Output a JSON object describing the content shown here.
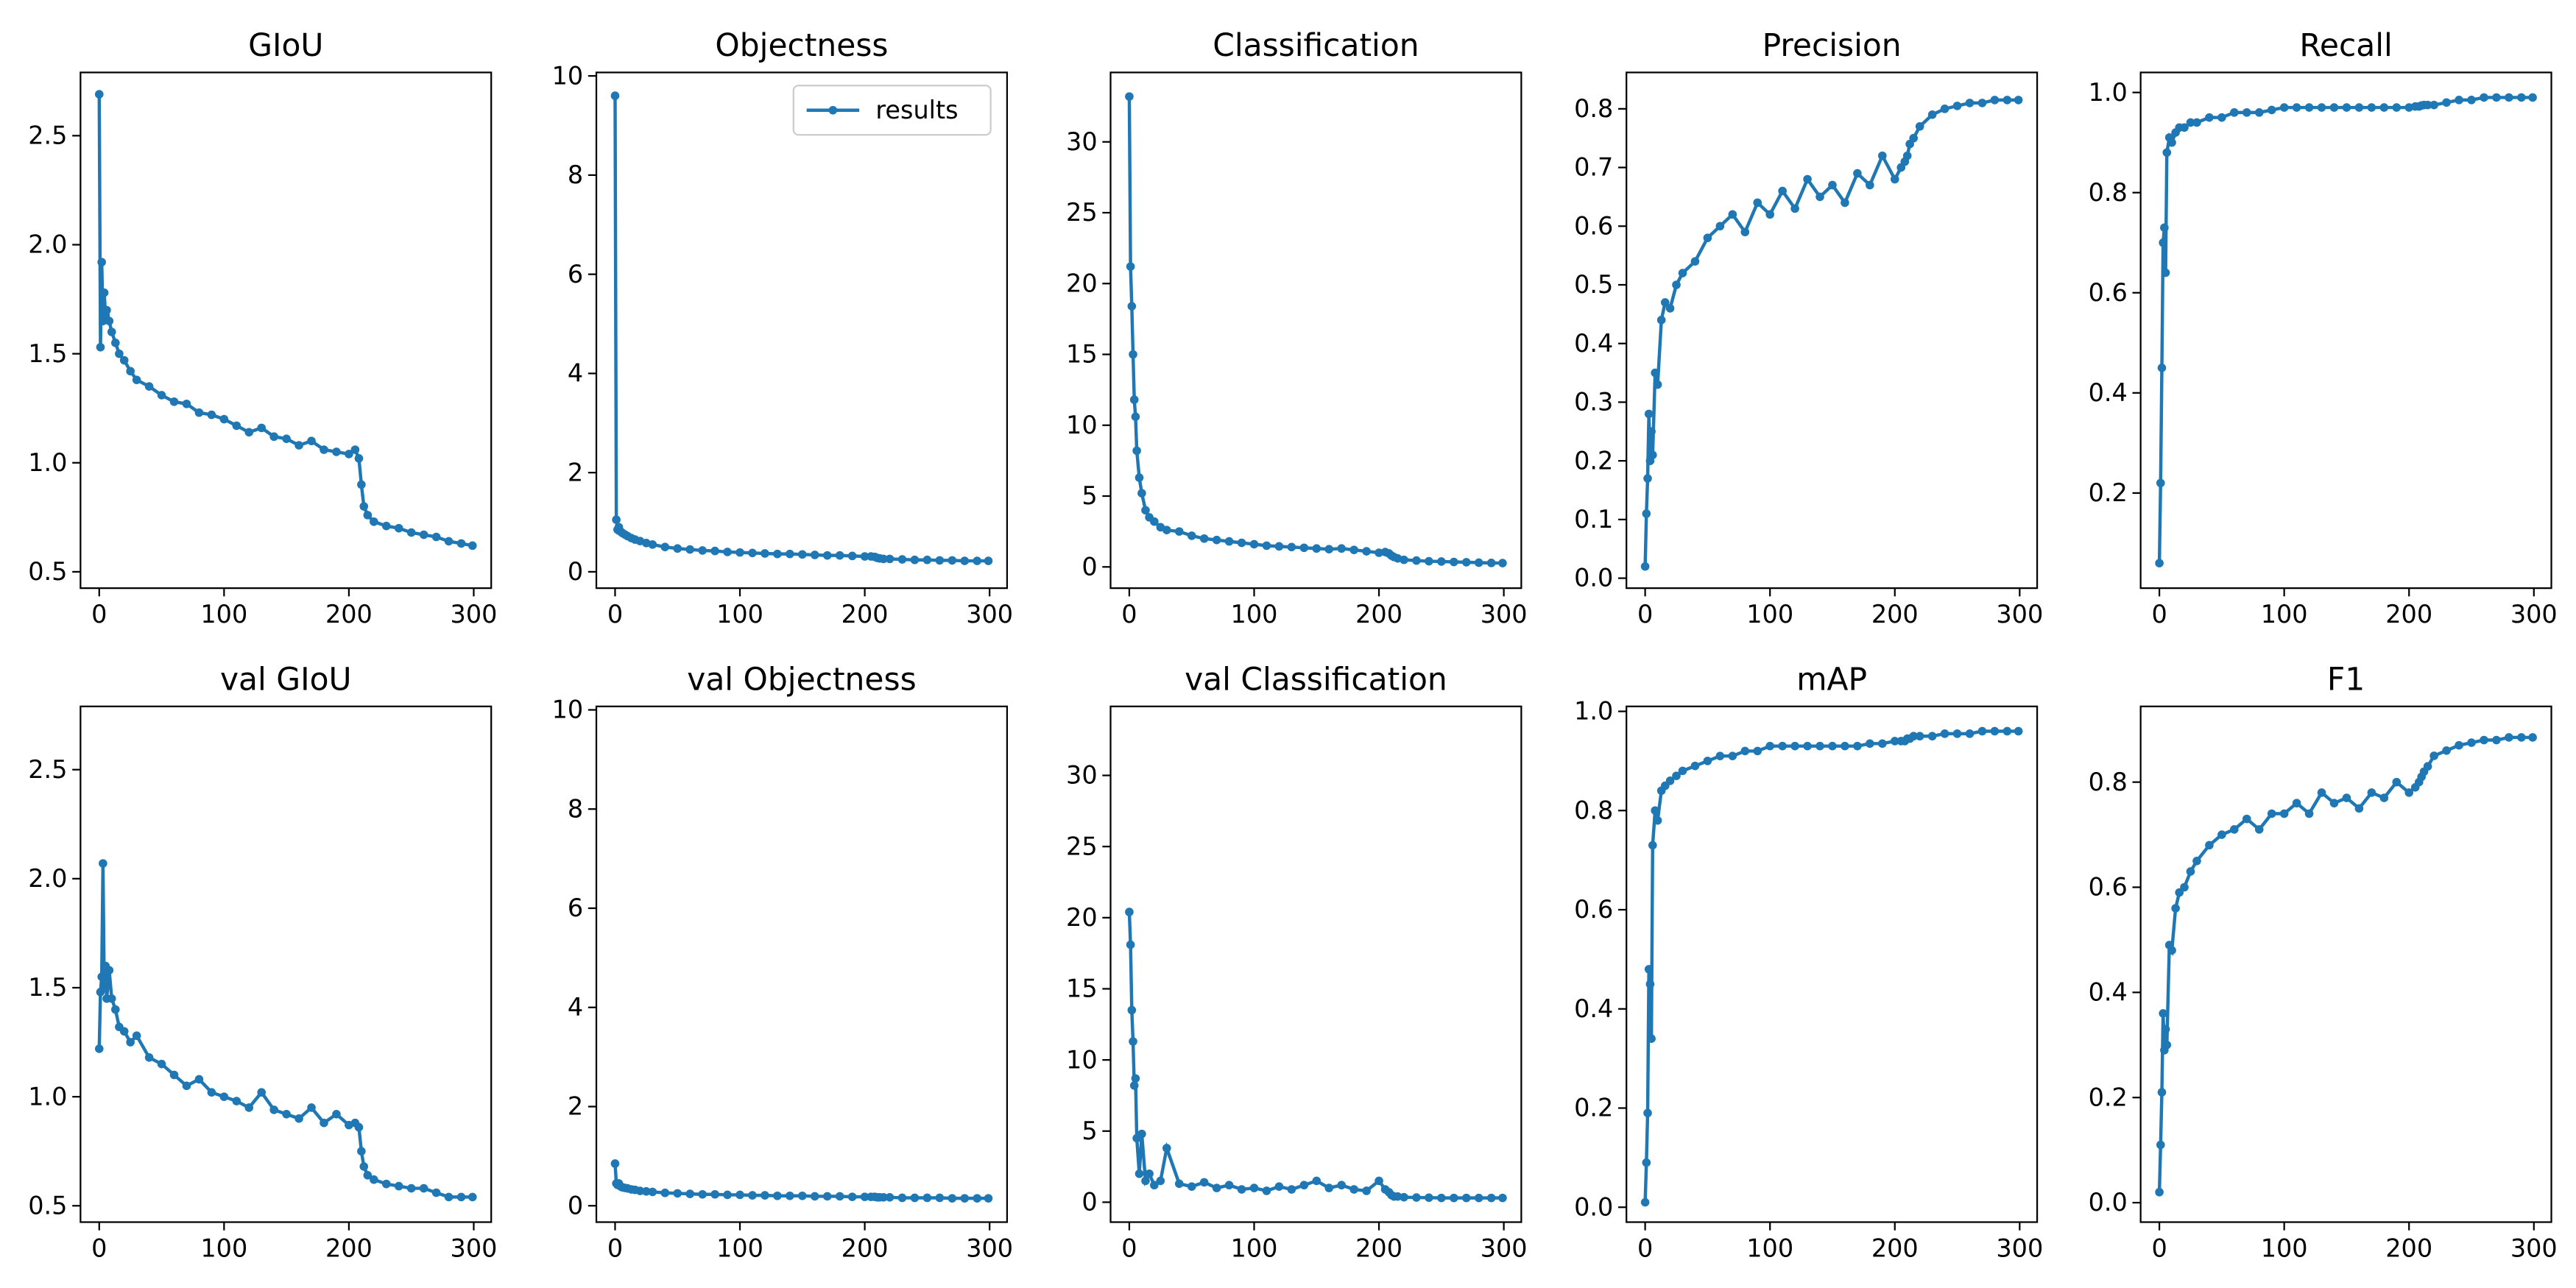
{
  "chart_data": [
    {
      "type": "line",
      "title": "GIoU",
      "color": "#1f77b4",
      "x": [
        0,
        1,
        2,
        3,
        4,
        5,
        6,
        8,
        10,
        13,
        16,
        20,
        25,
        30,
        40,
        50,
        60,
        70,
        80,
        90,
        100,
        110,
        120,
        130,
        140,
        150,
        160,
        170,
        180,
        190,
        200,
        205,
        208,
        210,
        212,
        215,
        220,
        230,
        240,
        250,
        260,
        270,
        280,
        290,
        299
      ],
      "values": [
        2.69,
        1.53,
        1.92,
        1.65,
        1.78,
        1.68,
        1.7,
        1.65,
        1.6,
        1.55,
        1.5,
        1.47,
        1.42,
        1.38,
        1.35,
        1.31,
        1.28,
        1.27,
        1.23,
        1.22,
        1.2,
        1.17,
        1.14,
        1.16,
        1.12,
        1.11,
        1.08,
        1.1,
        1.06,
        1.05,
        1.04,
        1.06,
        1.02,
        0.9,
        0.8,
        0.76,
        0.73,
        0.71,
        0.7,
        0.68,
        0.67,
        0.66,
        0.64,
        0.63,
        0.62
      ],
      "xlim": [
        -15,
        314
      ],
      "ylim": [
        0.425,
        2.79
      ],
      "xticks": [
        0,
        100,
        200,
        300
      ],
      "yticks": [
        0.5,
        {
          "value": 1,
          "label": "1.0"
        },
        1.5,
        {
          "value": 2,
          "label": "2.0"
        },
        2.5
      ]
    },
    {
      "type": "line",
      "title": "Objectness",
      "legend": "upper right",
      "x": [
        0,
        1,
        2,
        3,
        4,
        5,
        6,
        8,
        10,
        13,
        16,
        20,
        25,
        30,
        40,
        50,
        60,
        70,
        80,
        90,
        100,
        110,
        120,
        130,
        140,
        150,
        160,
        170,
        180,
        190,
        200,
        205,
        208,
        210,
        212,
        215,
        220,
        230,
        240,
        250,
        260,
        270,
        280,
        290,
        299
      ],
      "series": [
        {
          "name": "results",
          "color": "#1f77b4",
          "values": [
            9.6,
            1.05,
            0.85,
            0.9,
            0.82,
            0.8,
            0.78,
            0.75,
            0.72,
            0.68,
            0.65,
            0.62,
            0.58,
            0.55,
            0.5,
            0.47,
            0.45,
            0.43,
            0.42,
            0.4,
            0.39,
            0.38,
            0.37,
            0.36,
            0.36,
            0.35,
            0.34,
            0.33,
            0.33,
            0.32,
            0.31,
            0.31,
            0.3,
            0.28,
            0.27,
            0.26,
            0.26,
            0.25,
            0.24,
            0.24,
            0.23,
            0.23,
            0.22,
            0.22,
            0.22
          ]
        }
      ],
      "xlim": [
        -15,
        314
      ],
      "ylim": [
        -0.33,
        10.07
      ],
      "xticks": [
        0,
        100,
        200,
        300
      ],
      "yticks": [
        0,
        2,
        4,
        6,
        8,
        10
      ]
    },
    {
      "type": "line",
      "title": "Classification",
      "color": "#1f77b4",
      "x": [
        0,
        1,
        2,
        3,
        4,
        5,
        6,
        8,
        10,
        13,
        16,
        20,
        25,
        30,
        40,
        50,
        60,
        70,
        80,
        90,
        100,
        110,
        120,
        130,
        140,
        150,
        160,
        170,
        180,
        190,
        200,
        205,
        208,
        210,
        212,
        215,
        220,
        230,
        240,
        250,
        260,
        270,
        280,
        290,
        299
      ],
      "values": [
        33.2,
        21.2,
        18.4,
        15,
        11.8,
        10.6,
        8.2,
        6.3,
        5.2,
        4,
        3.5,
        3.2,
        2.8,
        2.6,
        2.5,
        2.2,
        2,
        1.9,
        1.8,
        1.7,
        1.6,
        1.5,
        1.45,
        1.4,
        1.35,
        1.3,
        1.25,
        1.3,
        1.2,
        1.1,
        1,
        1.05,
        0.95,
        0.8,
        0.7,
        0.6,
        0.5,
        0.45,
        0.4,
        0.38,
        0.35,
        0.33,
        0.3,
        0.28,
        0.27
      ],
      "xlim": [
        -15,
        314
      ],
      "ylim": [
        -1.5,
        34.9
      ],
      "xticks": [
        0,
        100,
        200,
        300
      ],
      "yticks": [
        0,
        5,
        10,
        15,
        20,
        25,
        30
      ]
    },
    {
      "type": "line",
      "title": "Precision",
      "color": "#1f77b4",
      "x": [
        0,
        1,
        2,
        3,
        4,
        5,
        6,
        8,
        10,
        13,
        16,
        20,
        25,
        30,
        40,
        50,
        60,
        70,
        80,
        90,
        100,
        110,
        120,
        130,
        140,
        150,
        160,
        170,
        180,
        190,
        200,
        205,
        208,
        210,
        212,
        215,
        220,
        230,
        240,
        250,
        260,
        270,
        280,
        290,
        299
      ],
      "values": [
        0.02,
        0.11,
        0.17,
        0.28,
        0.2,
        0.25,
        0.21,
        0.35,
        0.33,
        0.44,
        0.47,
        0.46,
        0.5,
        0.52,
        0.54,
        0.58,
        0.6,
        0.62,
        0.59,
        0.64,
        0.62,
        0.66,
        0.63,
        0.68,
        0.65,
        0.67,
        0.64,
        0.69,
        0.67,
        0.72,
        0.68,
        0.7,
        0.71,
        0.72,
        0.74,
        0.75,
        0.77,
        0.79,
        0.8,
        0.805,
        0.81,
        0.81,
        0.815,
        0.815,
        0.815
      ],
      "xlim": [
        -15,
        314
      ],
      "ylim": [
        -0.017,
        0.862
      ],
      "xticks": [
        0,
        100,
        200,
        300
      ],
      "yticks": [
        {
          "value": 0,
          "label": "0.0"
        },
        0.1,
        0.2,
        0.3,
        0.4,
        0.5,
        0.6,
        0.7,
        0.8
      ]
    },
    {
      "type": "line",
      "title": "Recall",
      "color": "#1f77b4",
      "x": [
        0,
        1,
        2,
        3,
        4,
        5,
        6,
        8,
        10,
        13,
        16,
        20,
        25,
        30,
        40,
        50,
        60,
        70,
        80,
        90,
        100,
        110,
        120,
        130,
        140,
        150,
        160,
        170,
        180,
        190,
        200,
        205,
        208,
        210,
        212,
        215,
        220,
        230,
        240,
        250,
        260,
        270,
        280,
        290,
        299
      ],
      "values": [
        0.06,
        0.22,
        0.45,
        0.7,
        0.73,
        0.64,
        0.88,
        0.91,
        0.9,
        0.92,
        0.93,
        0.93,
        0.94,
        0.94,
        0.95,
        0.95,
        0.96,
        0.96,
        0.96,
        0.965,
        0.97,
        0.97,
        0.97,
        0.97,
        0.97,
        0.97,
        0.97,
        0.97,
        0.97,
        0.97,
        0.97,
        0.972,
        0.972,
        0.974,
        0.975,
        0.975,
        0.975,
        0.98,
        0.985,
        0.985,
        0.99,
        0.99,
        0.99,
        0.99,
        0.99
      ],
      "xlim": [
        -15,
        314
      ],
      "ylim": [
        0.01,
        1.04
      ],
      "xticks": [
        0,
        100,
        200,
        300
      ],
      "yticks": [
        0.2,
        0.4,
        0.6,
        0.8,
        {
          "value": 1,
          "label": "1.0"
        }
      ]
    },
    {
      "type": "line",
      "title": "val GIoU",
      "color": "#1f77b4",
      "x": [
        0,
        1,
        2,
        3,
        4,
        5,
        6,
        8,
        10,
        13,
        16,
        20,
        25,
        30,
        40,
        50,
        60,
        70,
        80,
        90,
        100,
        110,
        120,
        130,
        140,
        150,
        160,
        170,
        180,
        190,
        200,
        205,
        208,
        210,
        212,
        215,
        220,
        230,
        240,
        250,
        260,
        270,
        280,
        290,
        299
      ],
      "values": [
        1.22,
        1.48,
        1.55,
        2.07,
        1.5,
        1.6,
        1.45,
        1.58,
        1.45,
        1.4,
        1.32,
        1.3,
        1.25,
        1.28,
        1.18,
        1.15,
        1.1,
        1.05,
        1.08,
        1.02,
        1,
        0.98,
        0.95,
        1.02,
        0.94,
        0.92,
        0.9,
        0.95,
        0.88,
        0.92,
        0.87,
        0.88,
        0.86,
        0.75,
        0.68,
        0.64,
        0.62,
        0.6,
        0.59,
        0.58,
        0.58,
        0.56,
        0.54,
        0.54,
        0.54
      ],
      "xlim": [
        -15,
        314
      ],
      "ylim": [
        0.425,
        2.79
      ],
      "xticks": [
        0,
        100,
        200,
        300
      ],
      "yticks": [
        0.5,
        {
          "value": 1,
          "label": "1.0"
        },
        1.5,
        {
          "value": 2,
          "label": "2.0"
        },
        2.5
      ]
    },
    {
      "type": "line",
      "title": "val Objectness",
      "color": "#1f77b4",
      "x": [
        0,
        1,
        2,
        3,
        4,
        5,
        6,
        8,
        10,
        13,
        16,
        20,
        25,
        30,
        40,
        50,
        60,
        70,
        80,
        90,
        100,
        110,
        120,
        130,
        140,
        150,
        160,
        170,
        180,
        190,
        200,
        205,
        208,
        210,
        212,
        215,
        220,
        230,
        240,
        250,
        260,
        270,
        280,
        290,
        299
      ],
      "values": [
        0.85,
        0.45,
        0.42,
        0.45,
        0.4,
        0.38,
        0.37,
        0.36,
        0.35,
        0.33,
        0.32,
        0.3,
        0.29,
        0.28,
        0.26,
        0.25,
        0.24,
        0.23,
        0.23,
        0.22,
        0.22,
        0.21,
        0.21,
        0.2,
        0.2,
        0.2,
        0.19,
        0.19,
        0.19,
        0.18,
        0.18,
        0.18,
        0.18,
        0.17,
        0.17,
        0.17,
        0.17,
        0.16,
        0.16,
        0.16,
        0.16,
        0.15,
        0.15,
        0.15,
        0.15
      ],
      "xlim": [
        -15,
        314
      ],
      "ylim": [
        -0.33,
        10.07
      ],
      "xticks": [
        0,
        100,
        200,
        300
      ],
      "yticks": [
        0,
        2,
        4,
        6,
        8,
        10
      ]
    },
    {
      "type": "line",
      "title": "val Classification",
      "color": "#1f77b4",
      "x": [
        0,
        1,
        2,
        3,
        4,
        5,
        6,
        8,
        10,
        13,
        16,
        20,
        25,
        30,
        40,
        50,
        60,
        70,
        80,
        90,
        100,
        110,
        120,
        130,
        140,
        150,
        160,
        170,
        180,
        190,
        200,
        205,
        208,
        210,
        212,
        215,
        220,
        230,
        240,
        250,
        260,
        270,
        280,
        290,
        299
      ],
      "values": [
        20.4,
        18.1,
        13.5,
        11.3,
        8.2,
        8.7,
        4.5,
        2,
        4.8,
        1.5,
        2,
        1.2,
        1.5,
        3.8,
        1.3,
        1.1,
        1.4,
        1,
        1.2,
        0.9,
        1,
        0.8,
        1.1,
        0.9,
        1.2,
        1.5,
        1,
        1.2,
        0.9,
        0.8,
        1.5,
        0.9,
        0.7,
        0.5,
        0.4,
        0.4,
        0.35,
        0.33,
        0.32,
        0.3,
        0.3,
        0.3,
        0.3,
        0.3,
        0.3
      ],
      "xlim": [
        -15,
        314
      ],
      "ylim": [
        -1.4,
        34.85
      ],
      "xticks": [
        0,
        100,
        200,
        300
      ],
      "yticks": [
        0,
        5,
        10,
        15,
        20,
        25,
        30
      ]
    },
    {
      "type": "line",
      "title": "mAP",
      "color": "#1f77b4",
      "x": [
        0,
        1,
        2,
        3,
        4,
        5,
        6,
        8,
        10,
        13,
        16,
        20,
        25,
        30,
        40,
        50,
        60,
        70,
        80,
        90,
        100,
        110,
        120,
        130,
        140,
        150,
        160,
        170,
        180,
        190,
        200,
        205,
        208,
        210,
        212,
        215,
        220,
        230,
        240,
        250,
        260,
        270,
        280,
        290,
        299
      ],
      "values": [
        0.01,
        0.09,
        0.19,
        0.48,
        0.45,
        0.34,
        0.73,
        0.8,
        0.78,
        0.84,
        0.85,
        0.86,
        0.87,
        0.88,
        0.89,
        0.9,
        0.91,
        0.91,
        0.92,
        0.92,
        0.93,
        0.93,
        0.93,
        0.93,
        0.93,
        0.93,
        0.93,
        0.93,
        0.935,
        0.935,
        0.94,
        0.94,
        0.94,
        0.945,
        0.945,
        0.95,
        0.95,
        0.95,
        0.955,
        0.955,
        0.955,
        0.96,
        0.96,
        0.96,
        0.96
      ],
      "xlim": [
        -15,
        314
      ],
      "ylim": [
        -0.03,
        1.01
      ],
      "xticks": [
        0,
        100,
        200,
        300
      ],
      "yticks": [
        {
          "value": 0,
          "label": "0.0"
        },
        0.2,
        0.4,
        0.6,
        0.8,
        {
          "value": 1,
          "label": "1.0"
        }
      ]
    },
    {
      "type": "line",
      "title": "F1",
      "color": "#1f77b4",
      "x": [
        0,
        1,
        2,
        3,
        4,
        5,
        6,
        8,
        10,
        13,
        16,
        20,
        25,
        30,
        40,
        50,
        60,
        70,
        80,
        90,
        100,
        110,
        120,
        130,
        140,
        150,
        160,
        170,
        180,
        190,
        200,
        205,
        208,
        210,
        212,
        215,
        220,
        230,
        240,
        250,
        260,
        270,
        280,
        290,
        299
      ],
      "values": [
        0.02,
        0.11,
        0.21,
        0.36,
        0.29,
        0.33,
        0.3,
        0.49,
        0.48,
        0.56,
        0.59,
        0.6,
        0.63,
        0.65,
        0.68,
        0.7,
        0.71,
        0.73,
        0.71,
        0.74,
        0.74,
        0.76,
        0.74,
        0.78,
        0.76,
        0.77,
        0.75,
        0.78,
        0.77,
        0.8,
        0.78,
        0.79,
        0.8,
        0.81,
        0.82,
        0.83,
        0.85,
        0.86,
        0.87,
        0.875,
        0.88,
        0.88,
        0.885,
        0.885,
        0.885
      ],
      "xlim": [
        -15,
        314
      ],
      "ylim": [
        -0.037,
        0.944
      ],
      "xticks": [
        0,
        100,
        200,
        300
      ],
      "yticks": [
        {
          "value": 0,
          "label": "0.0"
        },
        0.2,
        0.4,
        0.6,
        0.8
      ]
    }
  ]
}
